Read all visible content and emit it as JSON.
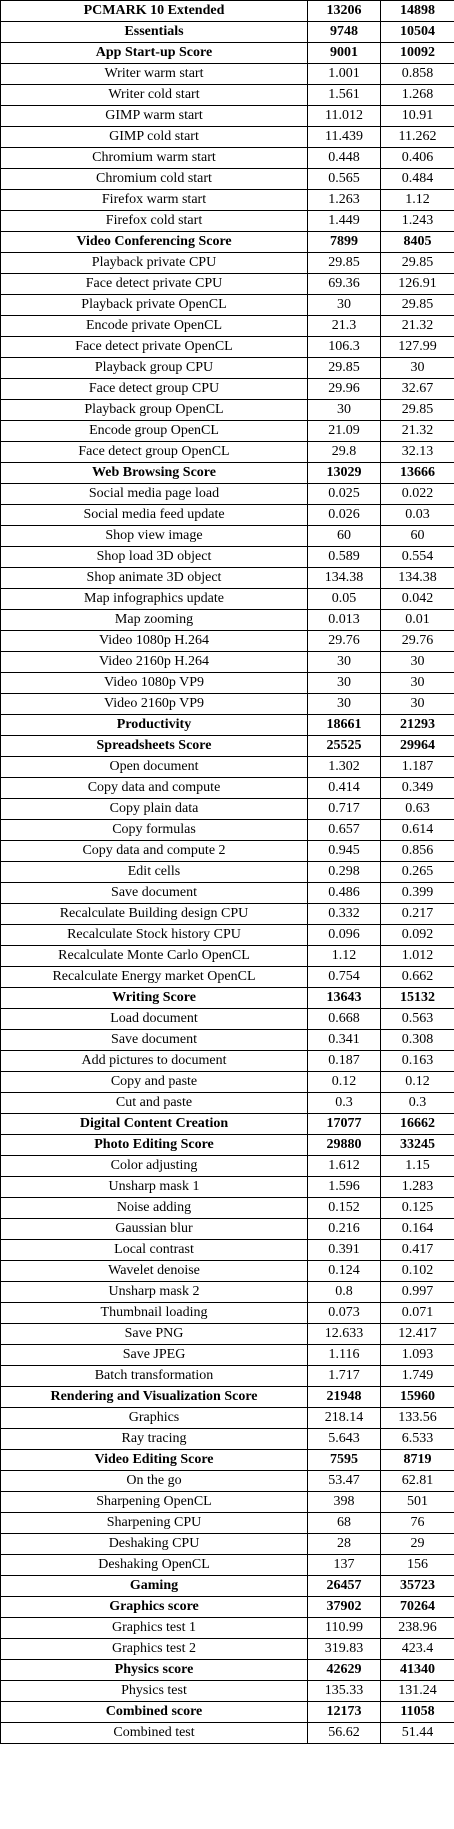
{
  "table": {
    "rows": [
      [
        "PCMARK 10 Extended",
        "13206",
        "14898"
      ],
      [
        "Essentials",
        "9748",
        "10504"
      ],
      [
        "App Start-up Score",
        "9001",
        "10092"
      ],
      [
        "Writer warm start",
        "1.001",
        "0.858"
      ],
      [
        "Writer cold start",
        "1.561",
        "1.268"
      ],
      [
        "GIMP warm start",
        "11.012",
        "10.91"
      ],
      [
        "GIMP cold start",
        "11.439",
        "11.262"
      ],
      [
        "Chromium warm start",
        "0.448",
        "0.406"
      ],
      [
        "Chromium cold start",
        "0.565",
        "0.484"
      ],
      [
        "Firefox warm start",
        "1.263",
        "1.12"
      ],
      [
        "Firefox cold start",
        "1.449",
        "1.243"
      ],
      [
        "Video Conferencing Score",
        "7899",
        "8405"
      ],
      [
        "Playback private CPU",
        "29.85",
        "29.85"
      ],
      [
        "Face detect private CPU",
        "69.36",
        "126.91"
      ],
      [
        "Playback private OpenCL",
        "30",
        "29.85"
      ],
      [
        "Encode private OpenCL",
        "21.3",
        "21.32"
      ],
      [
        "Face detect private OpenCL",
        "106.3",
        "127.99"
      ],
      [
        "Playback group CPU",
        "29.85",
        "30"
      ],
      [
        "Face detect group CPU",
        "29.96",
        "32.67"
      ],
      [
        "Playback group OpenCL",
        "30",
        "29.85"
      ],
      [
        "Encode group OpenCL",
        "21.09",
        "21.32"
      ],
      [
        "Face detect group OpenCL",
        "29.8",
        "32.13"
      ],
      [
        "Web Browsing Score",
        "13029",
        "13666"
      ],
      [
        "Social media page load",
        "0.025",
        "0.022"
      ],
      [
        "Social media feed update",
        "0.026",
        "0.03"
      ],
      [
        "Shop view image",
        "60",
        "60"
      ],
      [
        "Shop load 3D object",
        "0.589",
        "0.554"
      ],
      [
        "Shop animate 3D object",
        "134.38",
        "134.38"
      ],
      [
        "Map infographics update",
        "0.05",
        "0.042"
      ],
      [
        "Map zooming",
        "0.013",
        "0.01"
      ],
      [
        "Video 1080p H.264",
        "29.76",
        "29.76"
      ],
      [
        "Video 2160p H.264",
        "30",
        "30"
      ],
      [
        "Video 1080p VP9",
        "30",
        "30"
      ],
      [
        "Video 2160p VP9",
        "30",
        "30"
      ],
      [
        "Productivity",
        "18661",
        "21293"
      ],
      [
        "Spreadsheets Score",
        "25525",
        "29964"
      ],
      [
        "Open document",
        "1.302",
        "1.187"
      ],
      [
        "Copy data and compute",
        "0.414",
        "0.349"
      ],
      [
        "Copy plain data",
        "0.717",
        "0.63"
      ],
      [
        "Copy formulas",
        "0.657",
        "0.614"
      ],
      [
        "Copy data and compute 2",
        "0.945",
        "0.856"
      ],
      [
        "Edit cells",
        "0.298",
        "0.265"
      ],
      [
        "Save document",
        "0.486",
        "0.399"
      ],
      [
        "Recalculate Building design CPU",
        "0.332",
        "0.217"
      ],
      [
        "Recalculate Stock history CPU",
        "0.096",
        "0.092"
      ],
      [
        "Recalculate Monte Carlo OpenCL",
        "1.12",
        "1.012"
      ],
      [
        "Recalculate Energy market OpenCL",
        "0.754",
        "0.662"
      ],
      [
        "Writing Score",
        "13643",
        "15132"
      ],
      [
        "Load document",
        "0.668",
        "0.563"
      ],
      [
        "Save document",
        "0.341",
        "0.308"
      ],
      [
        "Add pictures to document",
        "0.187",
        "0.163"
      ],
      [
        "Copy and paste",
        "0.12",
        "0.12"
      ],
      [
        "Cut and paste",
        "0.3",
        "0.3"
      ],
      [
        "Digital Content Creation",
        "17077",
        "16662"
      ],
      [
        "Photo Editing Score",
        "29880",
        "33245"
      ],
      [
        "Color adjusting",
        "1.612",
        "1.15"
      ],
      [
        "Unsharp mask 1",
        "1.596",
        "1.283"
      ],
      [
        "Noise adding",
        "0.152",
        "0.125"
      ],
      [
        "Gaussian blur",
        "0.216",
        "0.164"
      ],
      [
        "Local contrast",
        "0.391",
        "0.417"
      ],
      [
        "Wavelet denoise",
        "0.124",
        "0.102"
      ],
      [
        "Unsharp mask 2",
        "0.8",
        "0.997"
      ],
      [
        "Thumbnail loading",
        "0.073",
        "0.071"
      ],
      [
        "Save PNG",
        "12.633",
        "12.417"
      ],
      [
        "Save JPEG",
        "1.116",
        "1.093"
      ],
      [
        "Batch transformation",
        "1.717",
        "1.749"
      ],
      [
        "Rendering and Visualization Score",
        "21948",
        "15960"
      ],
      [
        "Graphics",
        "218.14",
        "133.56"
      ],
      [
        "Ray tracing",
        "5.643",
        "6.533"
      ],
      [
        "Video Editing Score",
        "7595",
        "8719"
      ],
      [
        "On the go",
        "53.47",
        "62.81"
      ],
      [
        "Sharpening OpenCL",
        "398",
        "501"
      ],
      [
        "Sharpening CPU",
        "68",
        "76"
      ],
      [
        "Deshaking CPU",
        "28",
        "29"
      ],
      [
        "Deshaking OpenCL",
        "137",
        "156"
      ],
      [
        "Gaming",
        "26457",
        "35723"
      ],
      [
        "Graphics score",
        "37902",
        "70264"
      ],
      [
        "Graphics test 1",
        "110.99",
        "238.96"
      ],
      [
        "Graphics test 2",
        "319.83",
        "423.4"
      ],
      [
        "Physics score",
        "42629",
        "41340"
      ],
      [
        "Physics test",
        "135.33",
        "131.24"
      ],
      [
        "Combined score",
        "12173",
        "11058"
      ],
      [
        "Combined test",
        "56.62",
        "51.44"
      ]
    ],
    "bold_rows": [
      0,
      1,
      2,
      11,
      22,
      34,
      35,
      47,
      53,
      54,
      66,
      69,
      75,
      76,
      79,
      81
    ]
  }
}
